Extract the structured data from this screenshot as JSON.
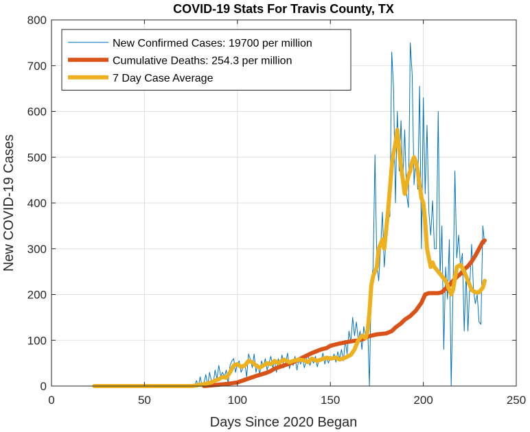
{
  "chart_data": {
    "type": "line",
    "title": "COVID-19 Stats For Travis County, TX",
    "xlabel": "Days Since 2020 Began",
    "ylabel": "New COVID-19 Cases",
    "xlim": [
      0,
      250
    ],
    "ylim": [
      0,
      800
    ],
    "xticks": [
      0,
      50,
      100,
      150,
      200,
      250
    ],
    "yticks": [
      0,
      100,
      200,
      300,
      400,
      500,
      600,
      700,
      800
    ],
    "grid": true,
    "legend_position": "top-left",
    "series": [
      {
        "name": "New Confirmed Cases: 19700 per million",
        "color": "#0072BD",
        "style": "thin",
        "points": [
          [
            23,
            0
          ],
          [
            40,
            0
          ],
          [
            60,
            0
          ],
          [
            75,
            0
          ],
          [
            77,
            0
          ],
          [
            78,
            12
          ],
          [
            79,
            0
          ],
          [
            80,
            20
          ],
          [
            81,
            0
          ],
          [
            82,
            8
          ],
          [
            83,
            25
          ],
          [
            84,
            0
          ],
          [
            85,
            30
          ],
          [
            86,
            12
          ],
          [
            87,
            5
          ],
          [
            88,
            35
          ],
          [
            89,
            15
          ],
          [
            90,
            45
          ],
          [
            91,
            22
          ],
          [
            92,
            30
          ],
          [
            93,
            20
          ],
          [
            94,
            35
          ],
          [
            95,
            5
          ],
          [
            96,
            45
          ],
          [
            97,
            55
          ],
          [
            98,
            60
          ],
          [
            99,
            30
          ],
          [
            100,
            48
          ],
          [
            101,
            55
          ],
          [
            102,
            30
          ],
          [
            103,
            40
          ],
          [
            104,
            50
          ],
          [
            105,
            20
          ],
          [
            106,
            70
          ],
          [
            107,
            58
          ],
          [
            108,
            40
          ],
          [
            109,
            70
          ],
          [
            110,
            30
          ],
          [
            111,
            48
          ],
          [
            112,
            25
          ],
          [
            113,
            55
          ],
          [
            114,
            42
          ],
          [
            115,
            60
          ],
          [
            116,
            35
          ],
          [
            117,
            50
          ],
          [
            118,
            65
          ],
          [
            119,
            40
          ],
          [
            120,
            55
          ],
          [
            121,
            30
          ],
          [
            122,
            60
          ],
          [
            123,
            45
          ],
          [
            124,
            68
          ],
          [
            125,
            40
          ],
          [
            126,
            50
          ],
          [
            127,
            72
          ],
          [
            128,
            38
          ],
          [
            129,
            55
          ],
          [
            130,
            45
          ],
          [
            131,
            65
          ],
          [
            132,
            35
          ],
          [
            133,
            58
          ],
          [
            134,
            48
          ],
          [
            135,
            62
          ],
          [
            136,
            40
          ],
          [
            137,
            55
          ],
          [
            138,
            70
          ],
          [
            139,
            45
          ],
          [
            140,
            58
          ],
          [
            141,
            50
          ],
          [
            142,
            65
          ],
          [
            143,
            42
          ],
          [
            144,
            60
          ],
          [
            145,
            55
          ],
          [
            146,
            72
          ],
          [
            147,
            48
          ],
          [
            148,
            62
          ],
          [
            149,
            50
          ],
          [
            150,
            65
          ],
          [
            151,
            58
          ],
          [
            152,
            70
          ],
          [
            153,
            52
          ],
          [
            154,
            75
          ],
          [
            155,
            60
          ],
          [
            156,
            80
          ],
          [
            157,
            55
          ],
          [
            158,
            100
          ],
          [
            159,
            70
          ],
          [
            160,
            120
          ],
          [
            161,
            95
          ],
          [
            162,
            150
          ],
          [
            163,
            110
          ],
          [
            164,
            140
          ],
          [
            165,
            100
          ],
          [
            166,
            120
          ],
          [
            167,
            80
          ],
          [
            168,
            130
          ],
          [
            169,
            105
          ],
          [
            170,
            140
          ],
          [
            171,
            0
          ],
          [
            172,
            225
          ],
          [
            173,
            260
          ],
          [
            174,
            505
          ],
          [
            175,
            270
          ],
          [
            176,
            230
          ],
          [
            177,
            300
          ],
          [
            178,
            380
          ],
          [
            179,
            260
          ],
          [
            180,
            320
          ],
          [
            181,
            400
          ],
          [
            182,
            370
          ],
          [
            183,
            730
          ],
          [
            184,
            650
          ],
          [
            185,
            400
          ],
          [
            186,
            600
          ],
          [
            187,
            470
          ],
          [
            188,
            580
          ],
          [
            189,
            450
          ],
          [
            190,
            560
          ],
          [
            191,
            420
          ],
          [
            192,
            390
          ],
          [
            193,
            750
          ],
          [
            194,
            680
          ],
          [
            195,
            440
          ],
          [
            196,
            500
          ],
          [
            197,
            430
          ],
          [
            198,
            655
          ],
          [
            199,
            300
          ],
          [
            200,
            630
          ],
          [
            201,
            420
          ],
          [
            202,
            570
          ],
          [
            203,
            380
          ],
          [
            204,
            330
          ],
          [
            205,
            405
          ],
          [
            206,
            300
          ],
          [
            207,
            300
          ],
          [
            208,
            600
          ],
          [
            209,
            240
          ],
          [
            210,
            350
          ],
          [
            211,
            80
          ],
          [
            212,
            260
          ],
          [
            213,
            190
          ],
          [
            214,
            320
          ],
          [
            215,
            0
          ],
          [
            216,
            210
          ],
          [
            217,
            470
          ],
          [
            218,
            280
          ],
          [
            219,
            330
          ],
          [
            220,
            260
          ],
          [
            221,
            290
          ],
          [
            222,
            120
          ],
          [
            223,
            250
          ],
          [
            224,
            120
          ],
          [
            225,
            220
          ],
          [
            226,
            310
          ],
          [
            227,
            210
          ],
          [
            228,
            180
          ],
          [
            229,
            200
          ],
          [
            230,
            140
          ],
          [
            231,
            135
          ],
          [
            232,
            350
          ],
          [
            233,
            310
          ]
        ]
      },
      {
        "name": "Cumulative Deaths: 254.3 per million",
        "color": "#D95319",
        "style": "thick",
        "points": [
          [
            82,
            0
          ],
          [
            90,
            3
          ],
          [
            95,
            5
          ],
          [
            100,
            8
          ],
          [
            105,
            15
          ],
          [
            110,
            22
          ],
          [
            115,
            28
          ],
          [
            118,
            33
          ],
          [
            120,
            38
          ],
          [
            125,
            45
          ],
          [
            130,
            52
          ],
          [
            135,
            62
          ],
          [
            140,
            72
          ],
          [
            145,
            80
          ],
          [
            148,
            83
          ],
          [
            150,
            88
          ],
          [
            155,
            93
          ],
          [
            160,
            97
          ],
          [
            165,
            100
          ],
          [
            168,
            103
          ],
          [
            170,
            108
          ],
          [
            172,
            110
          ],
          [
            175,
            113
          ],
          [
            180,
            115
          ],
          [
            183,
            120
          ],
          [
            185,
            128
          ],
          [
            188,
            137
          ],
          [
            190,
            145
          ],
          [
            193,
            153
          ],
          [
            196,
            165
          ],
          [
            199,
            182
          ],
          [
            201,
            200
          ],
          [
            203,
            203
          ],
          [
            208,
            203
          ],
          [
            210,
            205
          ],
          [
            212,
            213
          ],
          [
            214,
            220
          ],
          [
            216,
            230
          ],
          [
            218,
            238
          ],
          [
            220,
            245
          ],
          [
            222,
            255
          ],
          [
            224,
            262
          ],
          [
            226,
            272
          ],
          [
            228,
            285
          ],
          [
            230,
            300
          ],
          [
            232,
            315
          ],
          [
            233,
            318
          ]
        ]
      },
      {
        "name": "7 Day Case Average",
        "color": "#EDB120",
        "style": "thick",
        "points": [
          [
            23,
            0
          ],
          [
            60,
            0
          ],
          [
            76,
            0
          ],
          [
            80,
            3
          ],
          [
            83,
            5
          ],
          [
            86,
            8
          ],
          [
            88,
            12
          ],
          [
            90,
            15
          ],
          [
            92,
            20
          ],
          [
            94,
            18
          ],
          [
            96,
            30
          ],
          [
            98,
            45
          ],
          [
            100,
            48
          ],
          [
            102,
            42
          ],
          [
            104,
            45
          ],
          [
            106,
            55
          ],
          [
            108,
            52
          ],
          [
            110,
            45
          ],
          [
            112,
            40
          ],
          [
            114,
            45
          ],
          [
            116,
            50
          ],
          [
            118,
            48
          ],
          [
            120,
            55
          ],
          [
            122,
            50
          ],
          [
            125,
            58
          ],
          [
            128,
            52
          ],
          [
            130,
            55
          ],
          [
            133,
            58
          ],
          [
            136,
            56
          ],
          [
            138,
            52
          ],
          [
            140,
            60
          ],
          [
            143,
            55
          ],
          [
            145,
            58
          ],
          [
            148,
            62
          ],
          [
            150,
            60
          ],
          [
            153,
            62
          ],
          [
            155,
            58
          ],
          [
            158,
            62
          ],
          [
            161,
            68
          ],
          [
            163,
            80
          ],
          [
            165,
            100
          ],
          [
            167,
            110
          ],
          [
            169,
            105
          ],
          [
            170,
            120
          ],
          [
            171,
            160
          ],
          [
            172,
            220
          ],
          [
            173,
            240
          ],
          [
            175,
            260
          ],
          [
            176,
            300
          ],
          [
            177,
            310
          ],
          [
            178,
            320
          ],
          [
            179,
            300
          ],
          [
            180,
            340
          ],
          [
            181,
            380
          ],
          [
            182,
            430
          ],
          [
            183,
            480
          ],
          [
            184,
            510
          ],
          [
            185,
            530
          ],
          [
            186,
            560
          ],
          [
            187,
            520
          ],
          [
            188,
            480
          ],
          [
            189,
            450
          ],
          [
            190,
            420
          ],
          [
            191,
            440
          ],
          [
            192,
            460
          ],
          [
            193,
            470
          ],
          [
            194,
            490
          ],
          [
            195,
            500
          ],
          [
            196,
            490
          ],
          [
            197,
            470
          ],
          [
            198,
            440
          ],
          [
            199,
            410
          ],
          [
            200,
            400
          ],
          [
            201,
            360
          ],
          [
            202,
            300
          ],
          [
            203,
            280
          ],
          [
            204,
            260
          ],
          [
            205,
            270
          ],
          [
            206,
            260
          ],
          [
            208,
            250
          ],
          [
            210,
            240
          ],
          [
            212,
            230
          ],
          [
            214,
            210
          ],
          [
            215,
            200
          ],
          [
            216,
            210
          ],
          [
            218,
            260
          ],
          [
            220,
            265
          ],
          [
            222,
            250
          ],
          [
            224,
            230
          ],
          [
            226,
            210
          ],
          [
            228,
            205
          ],
          [
            230,
            205
          ],
          [
            232,
            215
          ],
          [
            233,
            230
          ]
        ]
      }
    ]
  }
}
